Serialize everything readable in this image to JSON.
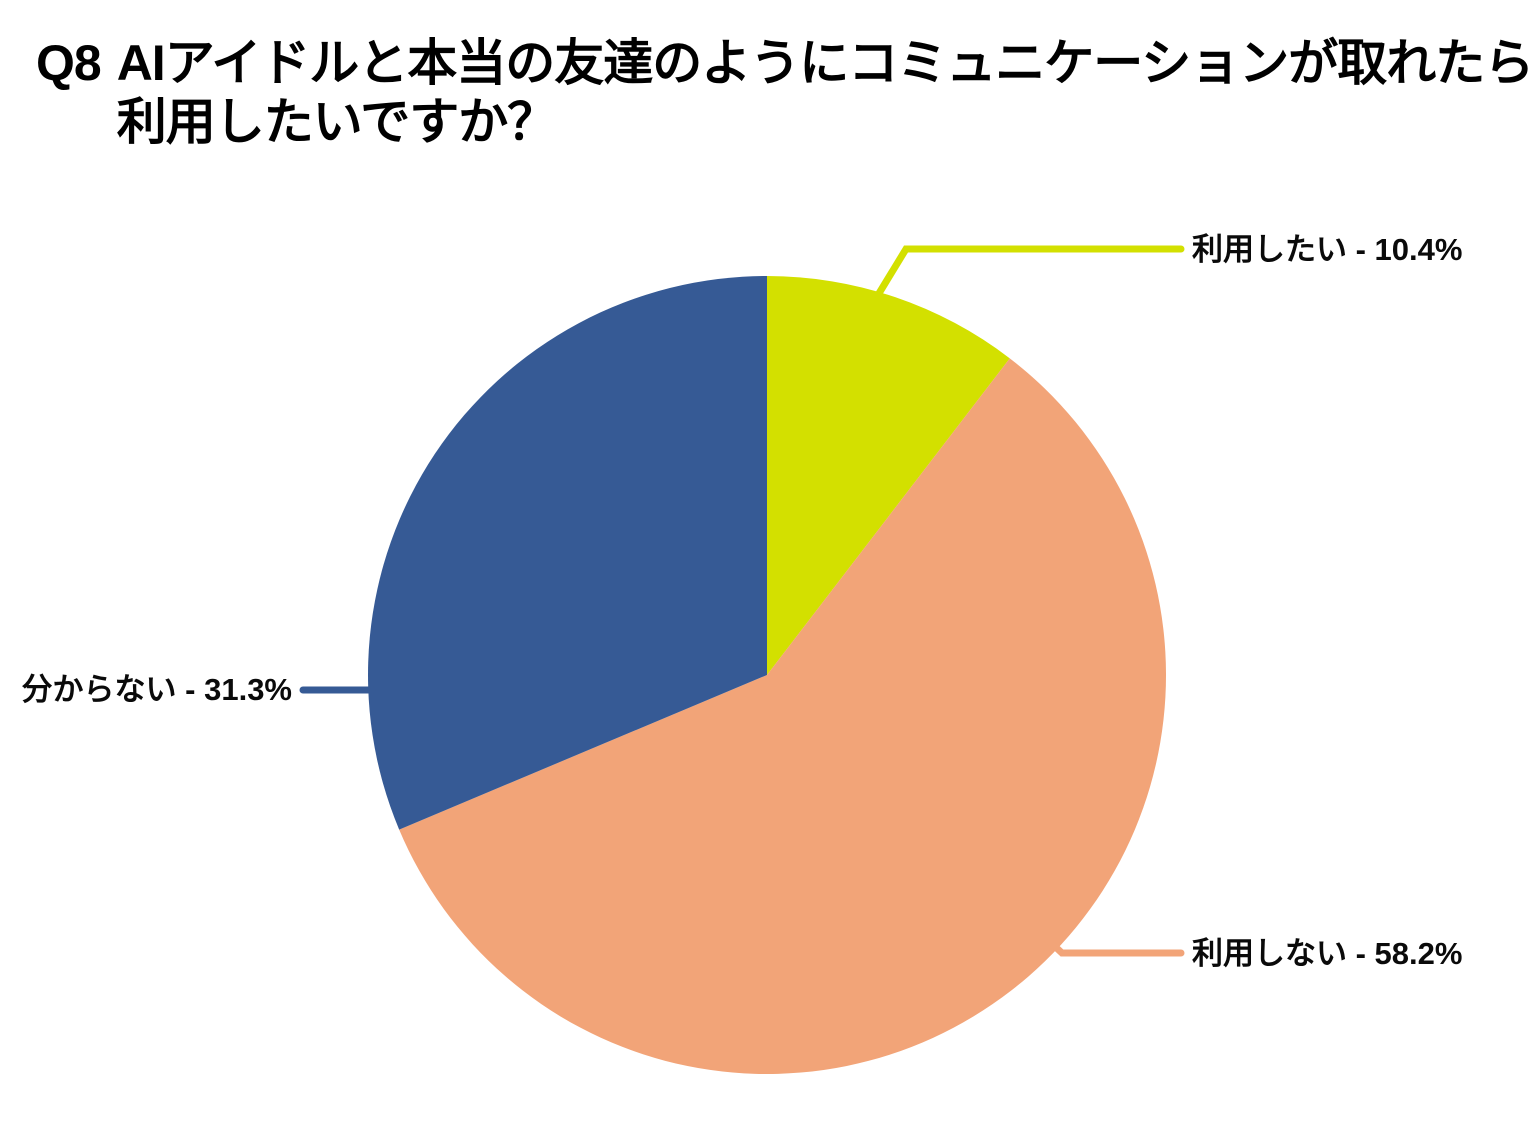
{
  "title": {
    "prefix": "Q8",
    "line1": "AIアイドルと本当の友達のようにコミュニケーションが取れたら",
    "line2": "利用したいですか？"
  },
  "chart_data": {
    "type": "pie",
    "title": "Q8 AIアイドルと本当の友達のようにコミュニケーションが取れたら利用したいですか？",
    "start_angle_deg": 0,
    "direction": "clockwise",
    "background_color": "#ffffff",
    "label_text_color": "#0a0a0a",
    "legend_position": "callout-labels",
    "slices": [
      {
        "label": "利用したい",
        "value_pct": 10.4,
        "color": "#d3e000",
        "label_text": "利用したい - 10.4%"
      },
      {
        "label": "利用しない",
        "value_pct": 58.2,
        "color": "#f2a478",
        "label_text": "利用しない - 58.2%"
      },
      {
        "label": "分からない",
        "value_pct": 31.3,
        "color": "#365a95",
        "label_text": "分からない - 31.3%"
      }
    ]
  }
}
